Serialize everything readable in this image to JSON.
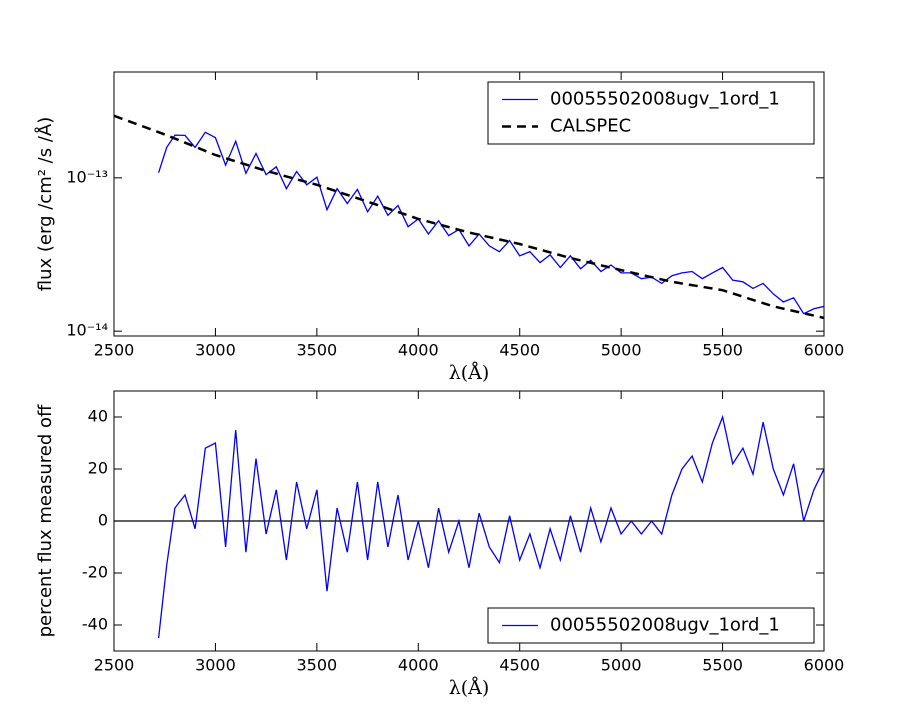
{
  "chart_data": [
    {
      "type": "line",
      "xlabel": "λ(Å)",
      "ylabel": "flux (erg /cm² /s /Å)",
      "yscale": "log",
      "xlim": [
        2500,
        6000
      ],
      "xticks": [
        2500,
        3000,
        3500,
        4000,
        4500,
        5000,
        5500,
        6000
      ],
      "ylim": [
        9.3e-15,
        4.9e-13
      ],
      "yticks": [
        {
          "value": 1e-14,
          "label": "10⁻¹⁴"
        },
        {
          "value": 1e-13,
          "label": "10⁻¹³"
        }
      ],
      "legend": "upper right",
      "grid": false,
      "series": [
        {
          "name": "00055502008ugv_1ord_1",
          "color": "#0000ff",
          "linestyle": "solid",
          "x": [
            2720,
            2760,
            2800,
            2850,
            2900,
            2950,
            3000,
            3050,
            3100,
            3150,
            3200,
            3250,
            3300,
            3350,
            3400,
            3450,
            3500,
            3550,
            3600,
            3650,
            3700,
            3750,
            3800,
            3850,
            3900,
            3950,
            4000,
            4050,
            4100,
            4150,
            4200,
            4250,
            4300,
            4350,
            4400,
            4450,
            4500,
            4550,
            4600,
            4650,
            4700,
            4750,
            4800,
            4850,
            4900,
            4950,
            5000,
            5050,
            5100,
            5150,
            5200,
            5250,
            5300,
            5350,
            5400,
            5450,
            5500,
            5550,
            5600,
            5650,
            5700,
            5750,
            5800,
            5850,
            5900,
            5950,
            6000
          ],
          "values": [
            1.08e-13,
            1.58e-13,
            1.9e-13,
            1.89e-13,
            1.58e-13,
            1.98e-13,
            1.83e-13,
            1.21e-13,
            1.73e-13,
            1.07e-13,
            1.44e-13,
            1.05e-13,
            1.18e-13,
            8.5e-14,
            1.1e-13,
            9e-14,
            1.01e-13,
            6.2e-14,
            8.5e-14,
            6.8e-14,
            8.4e-14,
            6e-14,
            7.6e-14,
            5.7e-14,
            6.6e-14,
            4.8e-14,
            5.4e-14,
            4.3e-14,
            5.25e-14,
            4.2e-14,
            4.6e-14,
            3.6e-14,
            4.3e-14,
            3.6e-14,
            3.3e-14,
            3.9e-14,
            3.1e-14,
            3.3e-14,
            2.8e-14,
            3.15e-14,
            2.6e-14,
            3.1e-14,
            2.55e-14,
            2.9e-14,
            2.45e-14,
            2.7e-14,
            2.4e-14,
            2.4e-14,
            2.2e-14,
            2.25e-14,
            2.05e-14,
            2.3e-14,
            2.4e-14,
            2.45e-14,
            2.2e-14,
            2.4e-14,
            2.6e-14,
            2.15e-14,
            2.1e-14,
            1.9e-14,
            2.05e-14,
            1.75e-14,
            1.55e-14,
            1.65e-14,
            1.3e-14,
            1.4e-14,
            1.45e-14
          ]
        },
        {
          "name": "CALSPEC",
          "color": "#000000",
          "linestyle": "dashed",
          "x": [
            2500,
            2750,
            3000,
            3250,
            3500,
            3750,
            4000,
            4250,
            4500,
            4750,
            5000,
            5250,
            5500,
            5750,
            6000
          ],
          "values": [
            2.54e-13,
            1.92e-13,
            1.41e-13,
            1.11e-13,
            9e-14,
            7e-14,
            5.4e-14,
            4.4e-14,
            3.7e-14,
            3e-14,
            2.5e-14,
            2.1e-14,
            1.85e-14,
            1.45e-14,
            1.22e-14
          ]
        }
      ]
    },
    {
      "type": "line",
      "xlabel": "λ(Å)",
      "ylabel": "percent flux measured off",
      "xlim": [
        2500,
        6000
      ],
      "xticks": [
        2500,
        3000,
        3500,
        4000,
        4500,
        5000,
        5500,
        6000
      ],
      "ylim": [
        -50,
        50
      ],
      "yticks": [
        -40,
        -20,
        0,
        20,
        40
      ],
      "hlines": [
        0
      ],
      "legend": "lower right",
      "grid": false,
      "series": [
        {
          "name": "00055502008ugv_1ord_1",
          "color": "#0000ff",
          "linestyle": "solid",
          "x": [
            2720,
            2760,
            2800,
            2850,
            2900,
            2950,
            3000,
            3050,
            3100,
            3150,
            3200,
            3250,
            3300,
            3350,
            3400,
            3450,
            3500,
            3550,
            3600,
            3650,
            3700,
            3750,
            3800,
            3850,
            3900,
            3950,
            4000,
            4050,
            4100,
            4150,
            4200,
            4250,
            4300,
            4350,
            4400,
            4450,
            4500,
            4550,
            4600,
            4650,
            4700,
            4750,
            4800,
            4850,
            4900,
            4950,
            5000,
            5050,
            5100,
            5150,
            5200,
            5250,
            5300,
            5350,
            5400,
            5450,
            5500,
            5550,
            5600,
            5650,
            5700,
            5750,
            5800,
            5850,
            5900,
            5950,
            6000
          ],
          "values": [
            -45,
            -17,
            5,
            10,
            -3,
            28,
            30,
            -10,
            35,
            -12,
            24,
            -5,
            12,
            -15,
            15,
            -3,
            12,
            -27,
            5,
            -12,
            15,
            -15,
            15,
            -10,
            10,
            -15,
            0,
            -18,
            5,
            -12,
            0,
            -18,
            3,
            -10,
            -16,
            2,
            -15,
            -5,
            -18,
            -3,
            -15,
            2,
            -12,
            5,
            -8,
            5,
            -5,
            0,
            -5,
            0,
            -5,
            10,
            20,
            25,
            15,
            30,
            40,
            22,
            28,
            18,
            38,
            20,
            10,
            22,
            0,
            12,
            20
          ]
        }
      ]
    }
  ]
}
